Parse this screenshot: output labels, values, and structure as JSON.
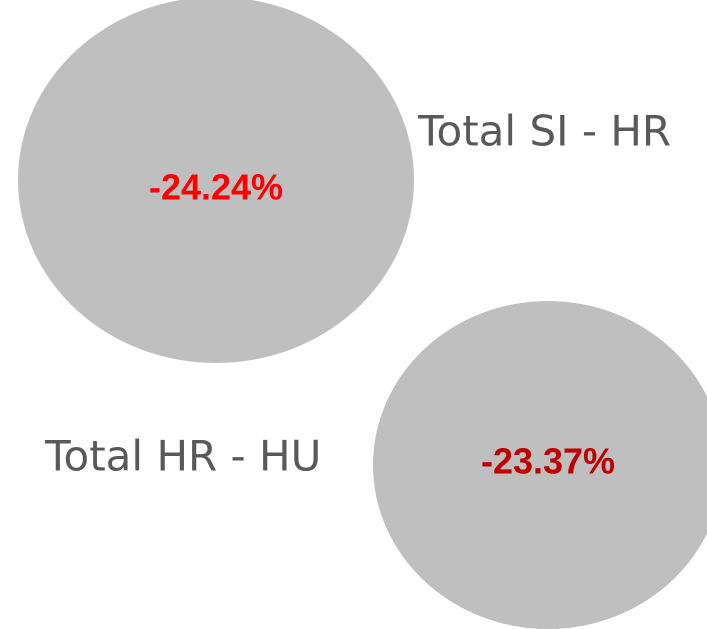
{
  "items": [
    {
      "label": "Total SI - HR",
      "value": "-24.24%"
    },
    {
      "label": "Total HR - HU",
      "value": "-23.37%"
    }
  ]
}
